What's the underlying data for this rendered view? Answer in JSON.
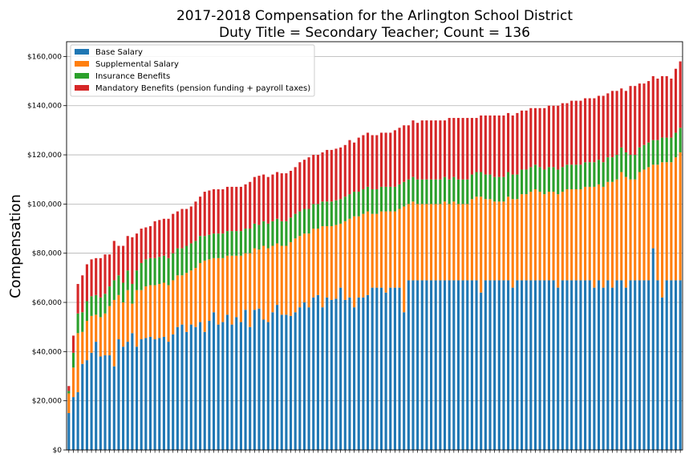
{
  "chart_data": {
    "type": "bar",
    "stacked": true,
    "title": "2017-2018 Compensation for the Arlington School District",
    "subtitle": "Duty Title = Secondary Teacher; Count = 136",
    "xlabel": "",
    "ylabel": "Compensation",
    "ylim": [
      0,
      166000
    ],
    "yticks": [
      0,
      20000,
      40000,
      60000,
      80000,
      100000,
      120000,
      140000,
      160000
    ],
    "ytick_labels": [
      "$0",
      "$20,000",
      "$40,000",
      "$60,000",
      "$80,000",
      "$100,000",
      "$120,000",
      "$140,000",
      "$160,000"
    ],
    "grid": "y",
    "legend_position": "top-left",
    "colors": {
      "base": "#1f77b4",
      "supplemental": "#ff7f0e",
      "insurance": "#2ca02c",
      "mandatory": "#d62728"
    },
    "series": [
      {
        "name": "Base Salary",
        "values": [
          15000,
          21500,
          23500,
          35000,
          36500,
          39500,
          44000,
          38000,
          38500,
          38500,
          34000,
          45000,
          42000,
          44000,
          47500,
          42000,
          45000,
          45500,
          46000,
          45000,
          45500,
          46000,
          44000,
          47000,
          50000,
          51000,
          48000,
          51000,
          50000,
          52000,
          48000,
          52500,
          56000,
          51000,
          52000,
          55000,
          51000,
          54000,
          52000,
          57000,
          50000,
          57000,
          57500,
          53000,
          52000,
          56000,
          59000,
          55000,
          55000,
          54500,
          56000,
          58000,
          60000,
          58000,
          62000,
          63000,
          58000,
          62000,
          61000,
          61500,
          66000,
          61000,
          62000,
          58000,
          62000,
          62000,
          63000,
          66000,
          66000,
          66000,
          64000,
          66000,
          66000,
          66000,
          56000,
          69000,
          69000,
          69000,
          69000,
          69000,
          69000,
          69000,
          69000,
          69000,
          69000,
          69000,
          69000,
          69000,
          69000,
          69000,
          69000,
          64000,
          69000,
          69000,
          69000,
          69000,
          69000,
          69000,
          66000,
          69000,
          69000,
          69000,
          69000,
          69000,
          69000,
          69000,
          69000,
          69000,
          66000,
          69000,
          69000,
          69000,
          69000,
          69000,
          69000,
          69000,
          66000,
          69000,
          66000,
          69000,
          66000,
          69000,
          69000,
          66000,
          69000,
          69000,
          69000,
          69000,
          69000,
          82000,
          69000,
          62000,
          69000,
          69000,
          69000,
          69000
        ]
      },
      {
        "name": "Supplemental Salary",
        "values": [
          8000,
          12000,
          24000,
          13000,
          16000,
          15000,
          11000,
          16000,
          17000,
          20000,
          27000,
          18000,
          18000,
          21000,
          12000,
          23000,
          20000,
          21000,
          21000,
          22000,
          22000,
          22000,
          23000,
          22000,
          21000,
          20000,
          24000,
          22000,
          24000,
          24000,
          29000,
          25000,
          22000,
          27000,
          26000,
          24000,
          28000,
          25000,
          27000,
          23000,
          30000,
          25000,
          24000,
          30000,
          30000,
          27000,
          25000,
          28000,
          28000,
          30000,
          30000,
          29000,
          28000,
          30000,
          28000,
          27000,
          33000,
          29000,
          30000,
          30000,
          26000,
          32000,
          32000,
          37000,
          33000,
          34000,
          34000,
          30000,
          30000,
          31000,
          33000,
          31000,
          31000,
          32000,
          43000,
          31000,
          32000,
          31000,
          31000,
          31000,
          31000,
          31000,
          31000,
          32000,
          31000,
          32000,
          31000,
          31000,
          31000,
          33000,
          34000,
          39000,
          33000,
          33000,
          32000,
          32000,
          32000,
          34000,
          36000,
          33000,
          35000,
          35000,
          36000,
          37000,
          36000,
          35000,
          36000,
          36000,
          38000,
          36000,
          37000,
          37000,
          37000,
          37000,
          38000,
          38000,
          41000,
          39000,
          41000,
          40000,
          43000,
          41000,
          44000,
          45000,
          41000,
          41000,
          44000,
          45000,
          46000,
          34000,
          47000,
          55000,
          48000,
          48000,
          50000,
          52000
        ]
      },
      {
        "name": "Insurance Benefits",
        "values": [
          1000,
          6000,
          8000,
          8000,
          8000,
          8000,
          8000,
          8000,
          8000,
          8000,
          8000,
          8000,
          8000,
          8000,
          8000,
          8000,
          11000,
          11000,
          11000,
          11000,
          11000,
          11000,
          11000,
          11000,
          11000,
          11000,
          11000,
          11000,
          11000,
          11000,
          10000,
          10000,
          10000,
          10000,
          10000,
          10000,
          10000,
          10000,
          10000,
          10000,
          10000,
          10000,
          10000,
          10000,
          10000,
          10000,
          10000,
          10000,
          10000,
          10000,
          10000,
          10000,
          10000,
          10000,
          10000,
          10000,
          10000,
          10000,
          10000,
          10000,
          10000,
          10000,
          10000,
          10000,
          10000,
          10000,
          10000,
          10000,
          10000,
          10000,
          10000,
          10000,
          10000,
          10000,
          10000,
          10000,
          10000,
          10000,
          10000,
          10000,
          10000,
          10000,
          10000,
          10000,
          10000,
          10000,
          10000,
          10000,
          10000,
          10000,
          10000,
          10000,
          10000,
          10000,
          10000,
          10000,
          10000,
          10000,
          10000,
          10000,
          10000,
          10000,
          10000,
          10000,
          10000,
          10000,
          10000,
          10000,
          10000,
          10000,
          10000,
          10000,
          10000,
          10000,
          10000,
          10000,
          10000,
          10000,
          10000,
          10000,
          10000,
          10000,
          10000,
          10000,
          10000,
          10000,
          10000,
          10000,
          10000,
          10000,
          10000,
          10000,
          10000,
          10000,
          10000,
          10000
        ]
      },
      {
        "name": "Mandatory Benefits (pension funding + payroll taxes)",
        "values": [
          2000,
          7000,
          12000,
          15000,
          15000,
          15000,
          15000,
          16000,
          16000,
          13000,
          16000,
          12000,
          15000,
          14000,
          19000,
          15000,
          14000,
          13000,
          13000,
          15000,
          15000,
          15000,
          16000,
          16000,
          15000,
          16000,
          15000,
          15000,
          16000,
          16000,
          18000,
          18000,
          18000,
          18000,
          18000,
          18000,
          18000,
          18000,
          18000,
          18000,
          19000,
          19000,
          20000,
          19000,
          19000,
          19000,
          19000,
          19500,
          19500,
          19000,
          19000,
          20000,
          20000,
          21000,
          20000,
          20000,
          20000,
          21000,
          21000,
          21000,
          21000,
          21000,
          22000,
          20000,
          22000,
          22000,
          22000,
          22000,
          22000,
          22000,
          22000,
          22000,
          23000,
          23000,
          23000,
          22000,
          23000,
          23000,
          24000,
          24000,
          24000,
          24000,
          24000,
          23000,
          25000,
          24000,
          25000,
          25000,
          25000,
          23000,
          22000,
          23000,
          24000,
          24000,
          25000,
          25000,
          25000,
          24000,
          24000,
          25000,
          24000,
          24000,
          24000,
          23000,
          24000,
          25000,
          25000,
          25000,
          26000,
          26000,
          25000,
          26000,
          26000,
          26000,
          26000,
          26000,
          26000,
          26000,
          27000,
          26000,
          27000,
          26000,
          24000,
          25000,
          28000,
          28000,
          26000,
          25000,
          25000,
          26000,
          25000,
          25000,
          25000,
          24000,
          26000,
          27000
        ]
      }
    ]
  }
}
